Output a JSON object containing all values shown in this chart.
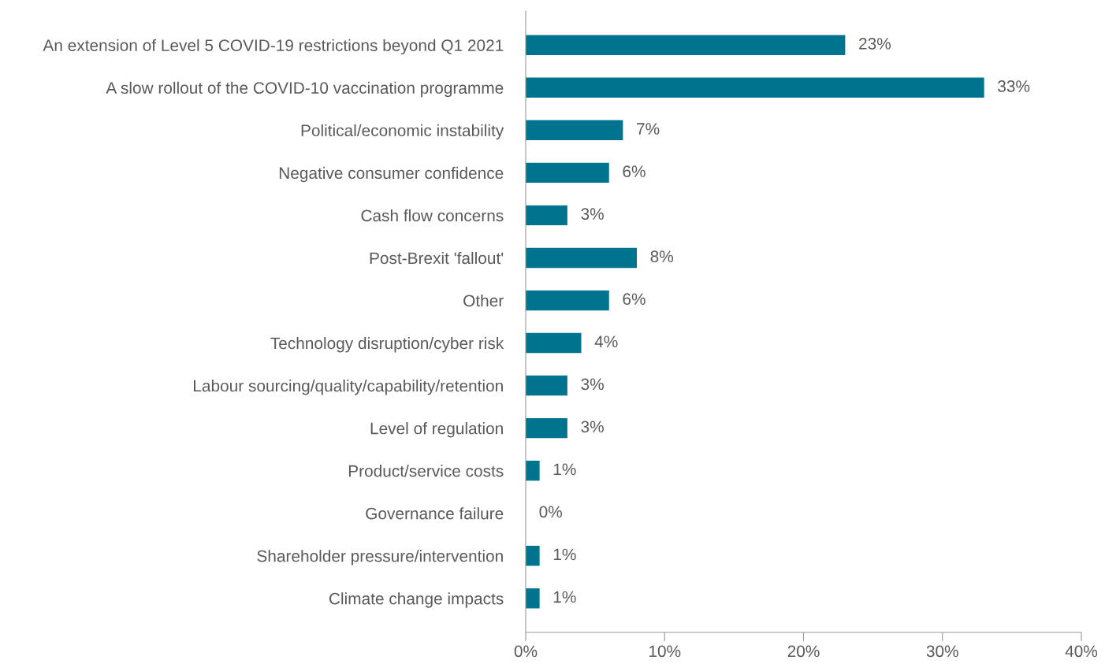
{
  "chart_data": {
    "type": "bar",
    "orientation": "horizontal",
    "color": "#00738f",
    "categories": [
      "An extension of Level 5 COVID-19 restrictions beyond Q1 2021",
      "A slow rollout of the COVID-10 vaccination programme",
      "Political/economic instability",
      "Negative consumer confidence",
      "Cash flow concerns",
      "Post-Brexit 'fallout'",
      "Other",
      "Technology disruption/cyber risk",
      "Labour sourcing/quality/capability/retention",
      "Level of regulation",
      "Product/service costs",
      "Governance failure",
      "Shareholder pressure/intervention",
      "Climate change impacts"
    ],
    "values": [
      23,
      33,
      7,
      6,
      3,
      8,
      6,
      4,
      3,
      3,
      1,
      0,
      1,
      1
    ],
    "value_labels": [
      "23%",
      "33%",
      "7%",
      "6%",
      "3%",
      "8%",
      "6%",
      "4%",
      "3%",
      "3%",
      "1%",
      "0%",
      "1%",
      "1%"
    ],
    "xlim": [
      0,
      40
    ],
    "xticks": [
      {
        "value": 0,
        "label": "0%"
      },
      {
        "value": 10,
        "label": "10%"
      },
      {
        "value": 20,
        "label": "20%"
      },
      {
        "value": 30,
        "label": "30%"
      },
      {
        "value": 40,
        "label": "40%"
      }
    ],
    "grid": false,
    "legend": false
  }
}
